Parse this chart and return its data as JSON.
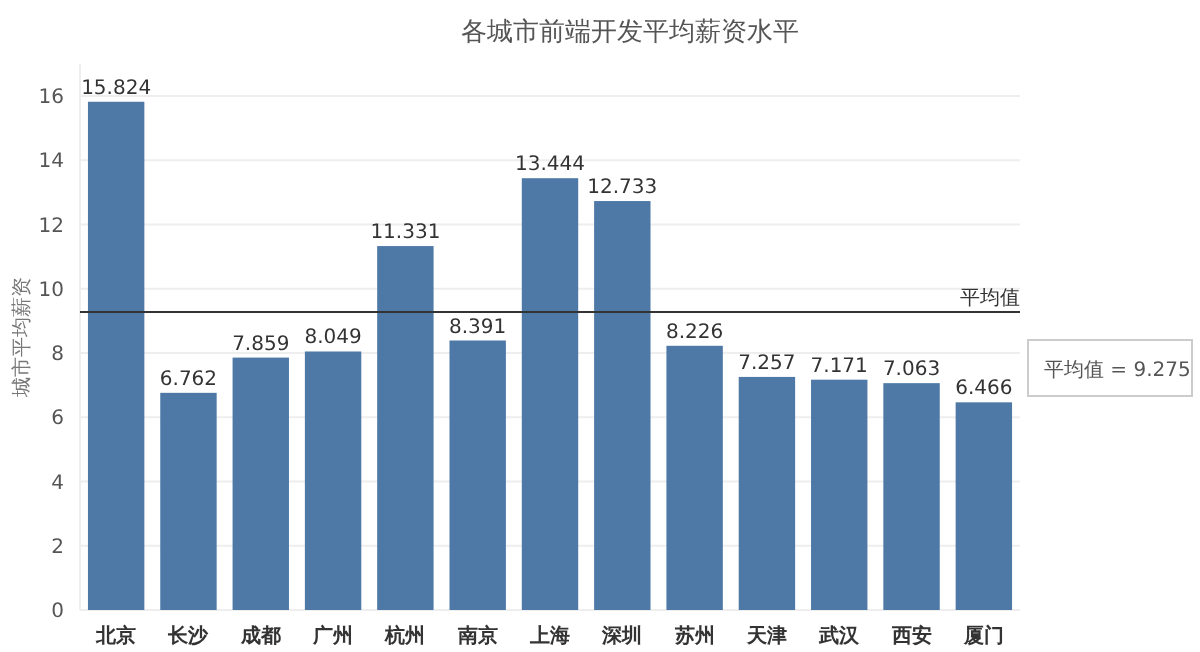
{
  "chart_data": {
    "type": "bar",
    "title": "各城市前端开发平均薪资水平",
    "ylabel": "城市平均薪资",
    "categories": [
      "北京",
      "长沙",
      "成都",
      "广州",
      "杭州",
      "南京",
      "上海",
      "深圳",
      "苏州",
      "天津",
      "武汉",
      "西安",
      "厦门"
    ],
    "values": [
      15.824,
      6.762,
      7.859,
      8.049,
      11.331,
      8.391,
      13.444,
      12.733,
      8.226,
      7.257,
      7.171,
      7.063,
      6.466
    ],
    "color": "#4e79a7",
    "ylim": [
      0,
      17
    ],
    "yticks": [
      0,
      2,
      4,
      6,
      8,
      10,
      12,
      14,
      16
    ],
    "grid": "y",
    "data_labels": true,
    "ref_lines": [
      {
        "axis": "y",
        "value": 9.275,
        "label": "平均值",
        "color": "#333333"
      }
    ],
    "annotations": [
      "平均值 = 9.275"
    ]
  }
}
